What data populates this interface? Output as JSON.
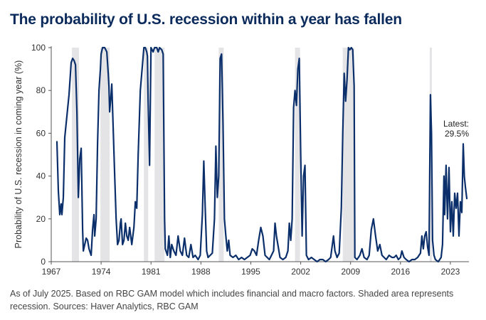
{
  "chart_data": {
    "type": "line",
    "title": "The probability of U.S. recession within a year has fallen",
    "ylabel": "Probability of U.S. recession in coming year (%)",
    "xlabel": "",
    "xlim": [
      1967.0,
      2025.6
    ],
    "ylim": [
      0,
      100
    ],
    "x_ticks": [
      "1967",
      "1974",
      "1981",
      "1988",
      "1995",
      "2002",
      "2009",
      "2016",
      "2023"
    ],
    "y_ticks": [
      "0",
      "20",
      "40",
      "60",
      "80",
      "100"
    ],
    "grid": false,
    "legend": "none",
    "line_color": "#0b2f6b",
    "shade_color": "#e4e4e6",
    "recessions": [
      {
        "start": 1969.9,
        "end": 1970.9
      },
      {
        "start": 1973.9,
        "end": 1975.2
      },
      {
        "start": 1980.0,
        "end": 1980.6
      },
      {
        "start": 1981.5,
        "end": 1982.9
      },
      {
        "start": 1990.5,
        "end": 1991.2
      },
      {
        "start": 2001.2,
        "end": 2001.9
      },
      {
        "start": 2007.9,
        "end": 2009.5
      },
      {
        "start": 2020.1,
        "end": 2020.4
      }
    ],
    "series": [
      {
        "values": [
          [
            1967.8,
            56
          ],
          [
            1968.0,
            33
          ],
          [
            1968.2,
            22
          ],
          [
            1968.4,
            27
          ],
          [
            1968.5,
            22
          ],
          [
            1968.7,
            30
          ],
          [
            1968.9,
            58
          ],
          [
            1969.2,
            68
          ],
          [
            1969.5,
            78
          ],
          [
            1969.8,
            93
          ],
          [
            1970.0,
            95
          ],
          [
            1970.2,
            94
          ],
          [
            1970.4,
            92
          ],
          [
            1970.6,
            70
          ],
          [
            1970.8,
            30
          ],
          [
            1971.0,
            48
          ],
          [
            1971.2,
            53
          ],
          [
            1971.4,
            15
          ],
          [
            1971.5,
            5
          ],
          [
            1971.7,
            8
          ],
          [
            1971.9,
            11
          ],
          [
            1972.1,
            10
          ],
          [
            1972.3,
            6
          ],
          [
            1972.6,
            3
          ],
          [
            1972.8,
            15
          ],
          [
            1973.0,
            22
          ],
          [
            1973.1,
            12
          ],
          [
            1973.3,
            20
          ],
          [
            1973.5,
            55
          ],
          [
            1973.7,
            80
          ],
          [
            1973.9,
            90
          ],
          [
            1974.0,
            97
          ],
          [
            1974.2,
            100
          ],
          [
            1974.5,
            100
          ],
          [
            1974.8,
            98
          ],
          [
            1975.0,
            88
          ],
          [
            1975.1,
            82
          ],
          [
            1975.2,
            70
          ],
          [
            1975.4,
            78
          ],
          [
            1975.5,
            83
          ],
          [
            1975.7,
            62
          ],
          [
            1975.9,
            40
          ],
          [
            1976.1,
            20
          ],
          [
            1976.3,
            8
          ],
          [
            1976.5,
            10
          ],
          [
            1976.7,
            18
          ],
          [
            1976.8,
            20
          ],
          [
            1977.0,
            8
          ],
          [
            1977.2,
            10
          ],
          [
            1977.4,
            18
          ],
          [
            1977.6,
            12
          ],
          [
            1977.8,
            10
          ],
          [
            1978.0,
            16
          ],
          [
            1978.3,
            8
          ],
          [
            1978.6,
            16
          ],
          [
            1978.8,
            28
          ],
          [
            1979.0,
            25
          ],
          [
            1979.2,
            50
          ],
          [
            1979.5,
            80
          ],
          [
            1979.8,
            92
          ],
          [
            1980.0,
            100
          ],
          [
            1980.2,
            100
          ],
          [
            1980.4,
            98
          ],
          [
            1980.5,
            96
          ],
          [
            1980.6,
            75
          ],
          [
            1980.8,
            45
          ],
          [
            1981.0,
            100
          ],
          [
            1981.3,
            98
          ],
          [
            1981.5,
            100
          ],
          [
            1981.8,
            100
          ],
          [
            1982.0,
            98
          ],
          [
            1982.2,
            100
          ],
          [
            1982.5,
            99
          ],
          [
            1982.7,
            97
          ],
          [
            1982.9,
            20
          ],
          [
            1983.0,
            6
          ],
          [
            1983.3,
            3
          ],
          [
            1983.5,
            12
          ],
          [
            1983.7,
            2
          ],
          [
            1983.9,
            8
          ],
          [
            1984.2,
            5
          ],
          [
            1984.5,
            3
          ],
          [
            1984.8,
            12
          ],
          [
            1985.1,
            5
          ],
          [
            1985.4,
            3
          ],
          [
            1985.7,
            11
          ],
          [
            1986.0,
            3
          ],
          [
            1986.3,
            2
          ],
          [
            1986.6,
            8
          ],
          [
            1986.9,
            2
          ],
          [
            1987.2,
            3
          ],
          [
            1987.6,
            1
          ],
          [
            1987.9,
            3
          ],
          [
            1988.2,
            22
          ],
          [
            1988.4,
            47
          ],
          [
            1988.6,
            25
          ],
          [
            1988.8,
            5
          ],
          [
            1989.0,
            2
          ],
          [
            1989.3,
            3
          ],
          [
            1989.6,
            4
          ],
          [
            1989.9,
            20
          ],
          [
            1990.1,
            54
          ],
          [
            1990.3,
            30
          ],
          [
            1990.5,
            40
          ],
          [
            1990.7,
            95
          ],
          [
            1990.9,
            97
          ],
          [
            1991.1,
            65
          ],
          [
            1991.3,
            20
          ],
          [
            1991.5,
            12
          ],
          [
            1991.7,
            5
          ],
          [
            1991.9,
            10
          ],
          [
            1992.1,
            3
          ],
          [
            1992.5,
            2
          ],
          [
            1992.9,
            3
          ],
          [
            1993.3,
            1
          ],
          [
            1993.7,
            2
          ],
          [
            1994.1,
            1
          ],
          [
            1994.5,
            2
          ],
          [
            1994.9,
            3
          ],
          [
            1995.2,
            6
          ],
          [
            1995.5,
            5
          ],
          [
            1995.8,
            3
          ],
          [
            1996.1,
            10
          ],
          [
            1996.4,
            16
          ],
          [
            1996.7,
            12
          ],
          [
            1997.0,
            3
          ],
          [
            1997.3,
            2
          ],
          [
            1997.6,
            1
          ],
          [
            1997.9,
            3
          ],
          [
            1998.2,
            5
          ],
          [
            1998.4,
            18
          ],
          [
            1998.6,
            12
          ],
          [
            1998.8,
            8
          ],
          [
            1999.1,
            2
          ],
          [
            1999.5,
            1
          ],
          [
            1999.9,
            2
          ],
          [
            2000.2,
            5
          ],
          [
            2000.4,
            18
          ],
          [
            2000.6,
            10
          ],
          [
            2000.8,
            20
          ],
          [
            2001.0,
            72
          ],
          [
            2001.2,
            80
          ],
          [
            2001.4,
            73
          ],
          [
            2001.6,
            90
          ],
          [
            2001.8,
            95
          ],
          [
            2002.0,
            50
          ],
          [
            2002.2,
            12
          ],
          [
            2002.4,
            40
          ],
          [
            2002.6,
            45
          ],
          [
            2002.8,
            3
          ],
          [
            2003.1,
            1
          ],
          [
            2003.5,
            2
          ],
          [
            2003.9,
            1
          ],
          [
            2004.3,
            0
          ],
          [
            2004.7,
            1
          ],
          [
            2005.1,
            1
          ],
          [
            2005.5,
            0
          ],
          [
            2005.9,
            1
          ],
          [
            2006.2,
            2
          ],
          [
            2006.6,
            12
          ],
          [
            2006.8,
            5
          ],
          [
            2007.1,
            2
          ],
          [
            2007.4,
            4
          ],
          [
            2007.7,
            25
          ],
          [
            2007.9,
            60
          ],
          [
            2008.1,
            88
          ],
          [
            2008.3,
            75
          ],
          [
            2008.5,
            85
          ],
          [
            2008.7,
            100
          ],
          [
            2008.9,
            99
          ],
          [
            2009.1,
            100
          ],
          [
            2009.3,
            99
          ],
          [
            2009.5,
            82
          ],
          [
            2009.6,
            2
          ],
          [
            2009.9,
            1
          ],
          [
            2010.3,
            3
          ],
          [
            2010.6,
            6
          ],
          [
            2010.9,
            2
          ],
          [
            2011.3,
            1
          ],
          [
            2011.6,
            3
          ],
          [
            2011.9,
            15
          ],
          [
            2012.2,
            20
          ],
          [
            2012.5,
            12
          ],
          [
            2012.8,
            5
          ],
          [
            2013.1,
            8
          ],
          [
            2013.4,
            3
          ],
          [
            2013.7,
            2
          ],
          [
            2014.0,
            1
          ],
          [
            2014.4,
            3
          ],
          [
            2014.8,
            2
          ],
          [
            2015.1,
            2
          ],
          [
            2015.4,
            3
          ],
          [
            2015.7,
            1
          ],
          [
            2016.0,
            2
          ],
          [
            2016.2,
            5
          ],
          [
            2016.5,
            2
          ],
          [
            2016.8,
            1
          ],
          [
            2017.2,
            0
          ],
          [
            2017.6,
            1
          ],
          [
            2018.0,
            1
          ],
          [
            2018.4,
            2
          ],
          [
            2018.8,
            4
          ],
          [
            2019.0,
            12
          ],
          [
            2019.2,
            6
          ],
          [
            2019.4,
            12
          ],
          [
            2019.6,
            14
          ],
          [
            2019.8,
            7
          ],
          [
            2020.0,
            3
          ],
          [
            2020.2,
            78
          ],
          [
            2020.35,
            60
          ],
          [
            2020.5,
            10
          ],
          [
            2020.7,
            3
          ],
          [
            2020.9,
            1
          ],
          [
            2021.3,
            0
          ],
          [
            2021.7,
            2
          ],
          [
            2021.9,
            8
          ],
          [
            2022.1,
            40
          ],
          [
            2022.2,
            22
          ],
          [
            2022.4,
            45
          ],
          [
            2022.6,
            20
          ],
          [
            2022.8,
            44
          ],
          [
            2023.0,
            14
          ],
          [
            2023.2,
            28
          ],
          [
            2023.4,
            12
          ],
          [
            2023.6,
            32
          ],
          [
            2023.8,
            25
          ],
          [
            2024.0,
            32
          ],
          [
            2024.2,
            12
          ],
          [
            2024.4,
            28
          ],
          [
            2024.6,
            23
          ],
          [
            2024.8,
            55
          ],
          [
            2024.95,
            40
          ],
          [
            2025.1,
            35
          ],
          [
            2025.3,
            29.5
          ]
        ]
      }
    ],
    "annotation": {
      "line1": "Latest:",
      "line2": "29.5%"
    }
  },
  "footnote": "As of July 2025. Based on RBC GAM model which includes financial and macro factors. Shaded area represents recession. Sources: Haver Analytics, RBC GAM"
}
